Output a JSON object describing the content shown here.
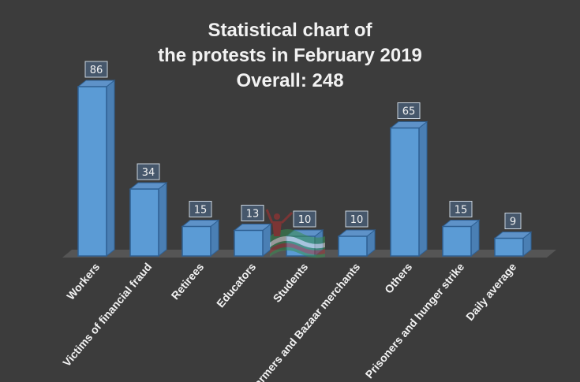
{
  "chart_data": {
    "type": "bar",
    "title": [
      "Statistical chart of",
      "the protests in February 2019",
      "Overall: 248"
    ],
    "categories": [
      "Workers",
      "Victims of financial fraud",
      "Retirees",
      "Educators",
      "Students",
      "Farmers and Bazaar merchants",
      "Others",
      "Prisoners and hunger strike",
      "Daily average"
    ],
    "values": [
      86,
      34,
      15,
      13,
      10,
      10,
      65,
      15,
      9
    ],
    "xlabel": "",
    "ylabel": "",
    "ylim": [
      0,
      90
    ],
    "grid": false,
    "legend": "none",
    "style": "3d-column"
  },
  "colors": {
    "background": "#3c3c3c",
    "bar_front": "#5b9bd5",
    "bar_side": "#4a7fb4",
    "bar_top": "#5e92c8",
    "bar_edge": "#2e5f92",
    "floor": "#555555",
    "label_box": "#46576b",
    "text": "#f2f2f2"
  }
}
